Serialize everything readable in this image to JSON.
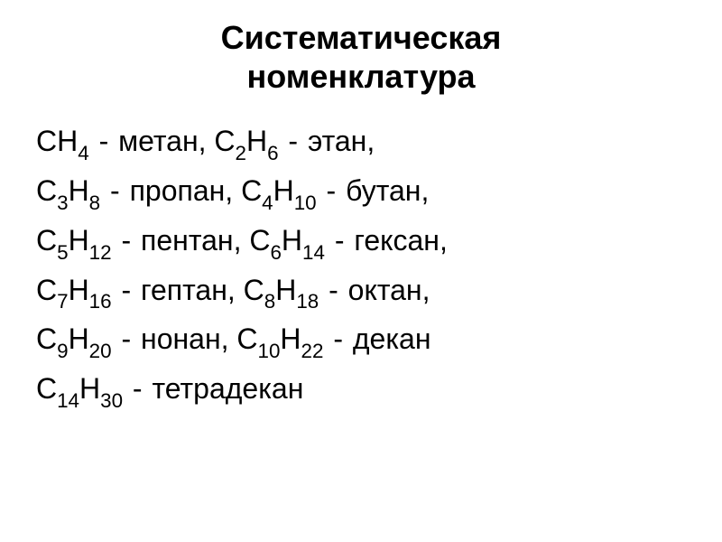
{
  "title_line1": "Систематическая",
  "title_line2": "номенклатура",
  "title_fontsize": 36,
  "body_fontsize": 32,
  "text_color": "#000000",
  "background_color": "#ffffff",
  "alkanes": [
    {
      "formula_parts": [
        "CH",
        "4"
      ],
      "name": "метан"
    },
    {
      "formula_parts": [
        "C",
        "2",
        "H",
        "6"
      ],
      "name": "этан"
    },
    {
      "formula_parts": [
        "C",
        "3",
        "H",
        "8"
      ],
      "name": "пропан"
    },
    {
      "formula_parts": [
        "C",
        "4",
        "H",
        "10"
      ],
      "name": "бутан"
    },
    {
      "formula_parts": [
        "C",
        "5",
        "H",
        "12"
      ],
      "name": "пентан"
    },
    {
      "formula_parts": [
        "C",
        "6",
        "H",
        "14"
      ],
      "name": "гексан"
    },
    {
      "formula_parts": [
        "C",
        "7",
        "H",
        "16"
      ],
      "name": "гептан"
    },
    {
      "formula_parts": [
        "C",
        "8",
        "H",
        "18"
      ],
      "name": "октан"
    },
    {
      "formula_parts": [
        "C",
        "9",
        "H",
        "20"
      ],
      "name": "нонан"
    },
    {
      "formula_parts": [
        "C",
        "10",
        "H",
        "22"
      ],
      "name": "декан"
    },
    {
      "formula_parts": [
        "C",
        "14",
        "H",
        "30"
      ],
      "name": "тетрадекан"
    }
  ],
  "layout": {
    "pairs_per_line": 2,
    "lines": [
      [
        0,
        1
      ],
      [
        2,
        3
      ],
      [
        4,
        5
      ],
      [
        6,
        7
      ],
      [
        8,
        9
      ],
      [
        10
      ]
    ]
  },
  "separator": " - ",
  "pair_separator": ", "
}
